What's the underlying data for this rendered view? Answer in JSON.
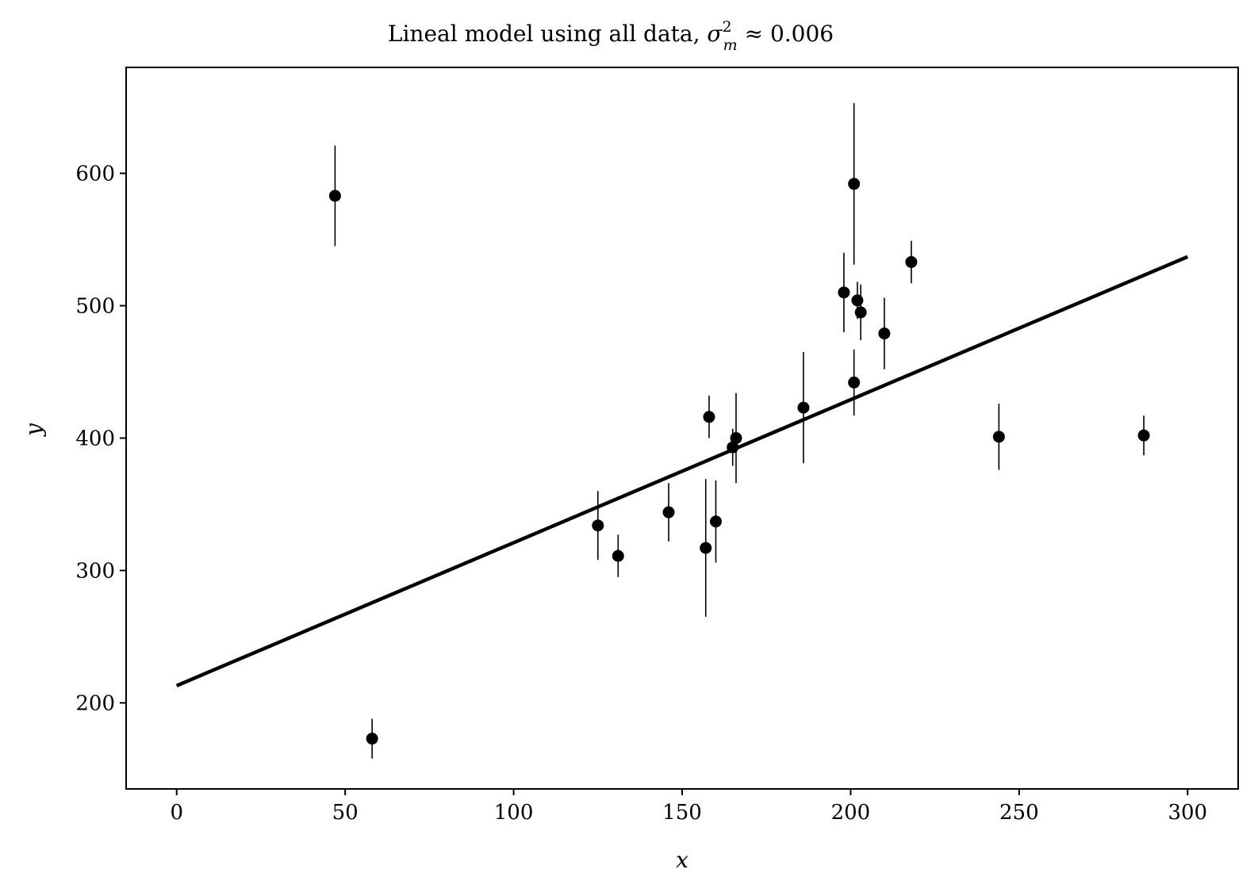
{
  "chart_data": {
    "type": "scatter",
    "title": "Lineal model using all data, ",
    "title_math": {
      "symbol": "σ",
      "superscript": "2",
      "subscript": "m",
      "relation": " ≈ ",
      "value": "0.006"
    },
    "xlabel": "x",
    "ylabel": "y",
    "xlim": [
      -15,
      315
    ],
    "ylim": [
      135,
      680
    ],
    "xticks": [
      0,
      50,
      100,
      150,
      200,
      250,
      300
    ],
    "yticks": [
      200,
      300,
      400,
      500,
      600
    ],
    "grid": false,
    "colors": {
      "points": "#000000",
      "line": "#000000",
      "axes": "#000000"
    },
    "series": [
      {
        "type": "errorbar",
        "points": [
          {
            "x": 47,
            "y": 583,
            "err": 38
          },
          {
            "x": 58,
            "y": 173,
            "err": 15
          },
          {
            "x": 125,
            "y": 334,
            "err": 26
          },
          {
            "x": 131,
            "y": 311,
            "err": 16
          },
          {
            "x": 146,
            "y": 344,
            "err": 22
          },
          {
            "x": 157,
            "y": 317,
            "err": 52
          },
          {
            "x": 158,
            "y": 416,
            "err": 16
          },
          {
            "x": 160,
            "y": 337,
            "err": 31
          },
          {
            "x": 165,
            "y": 393,
            "err": 14
          },
          {
            "x": 166,
            "y": 400,
            "err": 34
          },
          {
            "x": 186,
            "y": 423,
            "err": 42
          },
          {
            "x": 198,
            "y": 510,
            "err": 30
          },
          {
            "x": 201,
            "y": 592,
            "err": 61
          },
          {
            "x": 201,
            "y": 442,
            "err": 25
          },
          {
            "x": 202,
            "y": 504,
            "err": 14
          },
          {
            "x": 203,
            "y": 495,
            "err": 21
          },
          {
            "x": 210,
            "y": 479,
            "err": 27
          },
          {
            "x": 218,
            "y": 533,
            "err": 16
          },
          {
            "x": 244,
            "y": 401,
            "err": 25
          },
          {
            "x": 287,
            "y": 402,
            "err": 15
          }
        ]
      },
      {
        "type": "line",
        "x": [
          0,
          300
        ],
        "y": [
          213,
          537
        ]
      }
    ]
  }
}
